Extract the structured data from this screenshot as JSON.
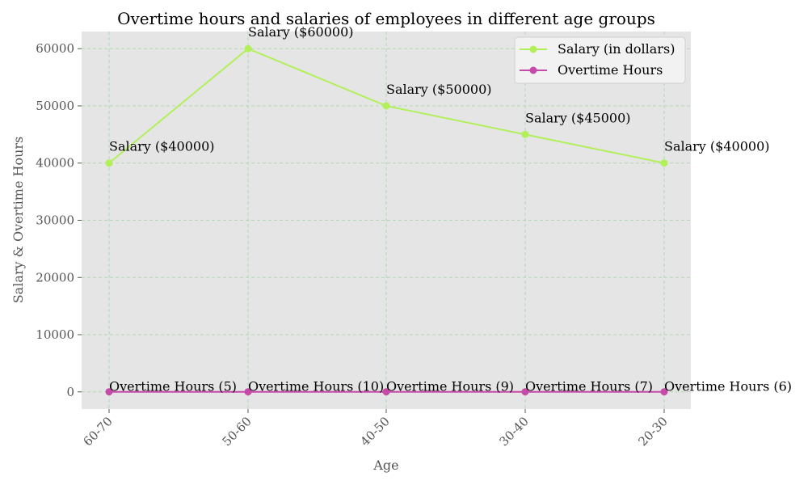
{
  "chart_data": {
    "type": "line",
    "title": "Overtime hours and salaries of employees in different age groups",
    "xlabel": "Age",
    "ylabel": "Salary & Overtime Hours",
    "categories": [
      "60-70",
      "50-60",
      "40-50",
      "30-40",
      "20-30"
    ],
    "ylim": [
      -3000,
      63000
    ],
    "yticks": [
      0,
      10000,
      20000,
      30000,
      40000,
      50000,
      60000
    ],
    "grid": true,
    "legend_position": "top-right",
    "series": [
      {
        "name": "Salary (in dollars)",
        "color": "#b2f05a",
        "values": [
          40000,
          60000,
          50000,
          45000,
          40000
        ],
        "labels": [
          "Salary ($40000)",
          "Salary ($60000)",
          "Salary ($50000)",
          "Salary ($45000)",
          "Salary ($40000)"
        ]
      },
      {
        "name": "Overtime Hours",
        "color": "#c64aa8",
        "values": [
          5,
          10,
          9,
          7,
          6
        ],
        "labels": [
          "Overtime Hours (5)",
          "Overtime Hours (10)",
          "Overtime Hours (9)",
          "Overtime Hours (7)",
          "Overtime Hours (6)"
        ]
      }
    ]
  }
}
